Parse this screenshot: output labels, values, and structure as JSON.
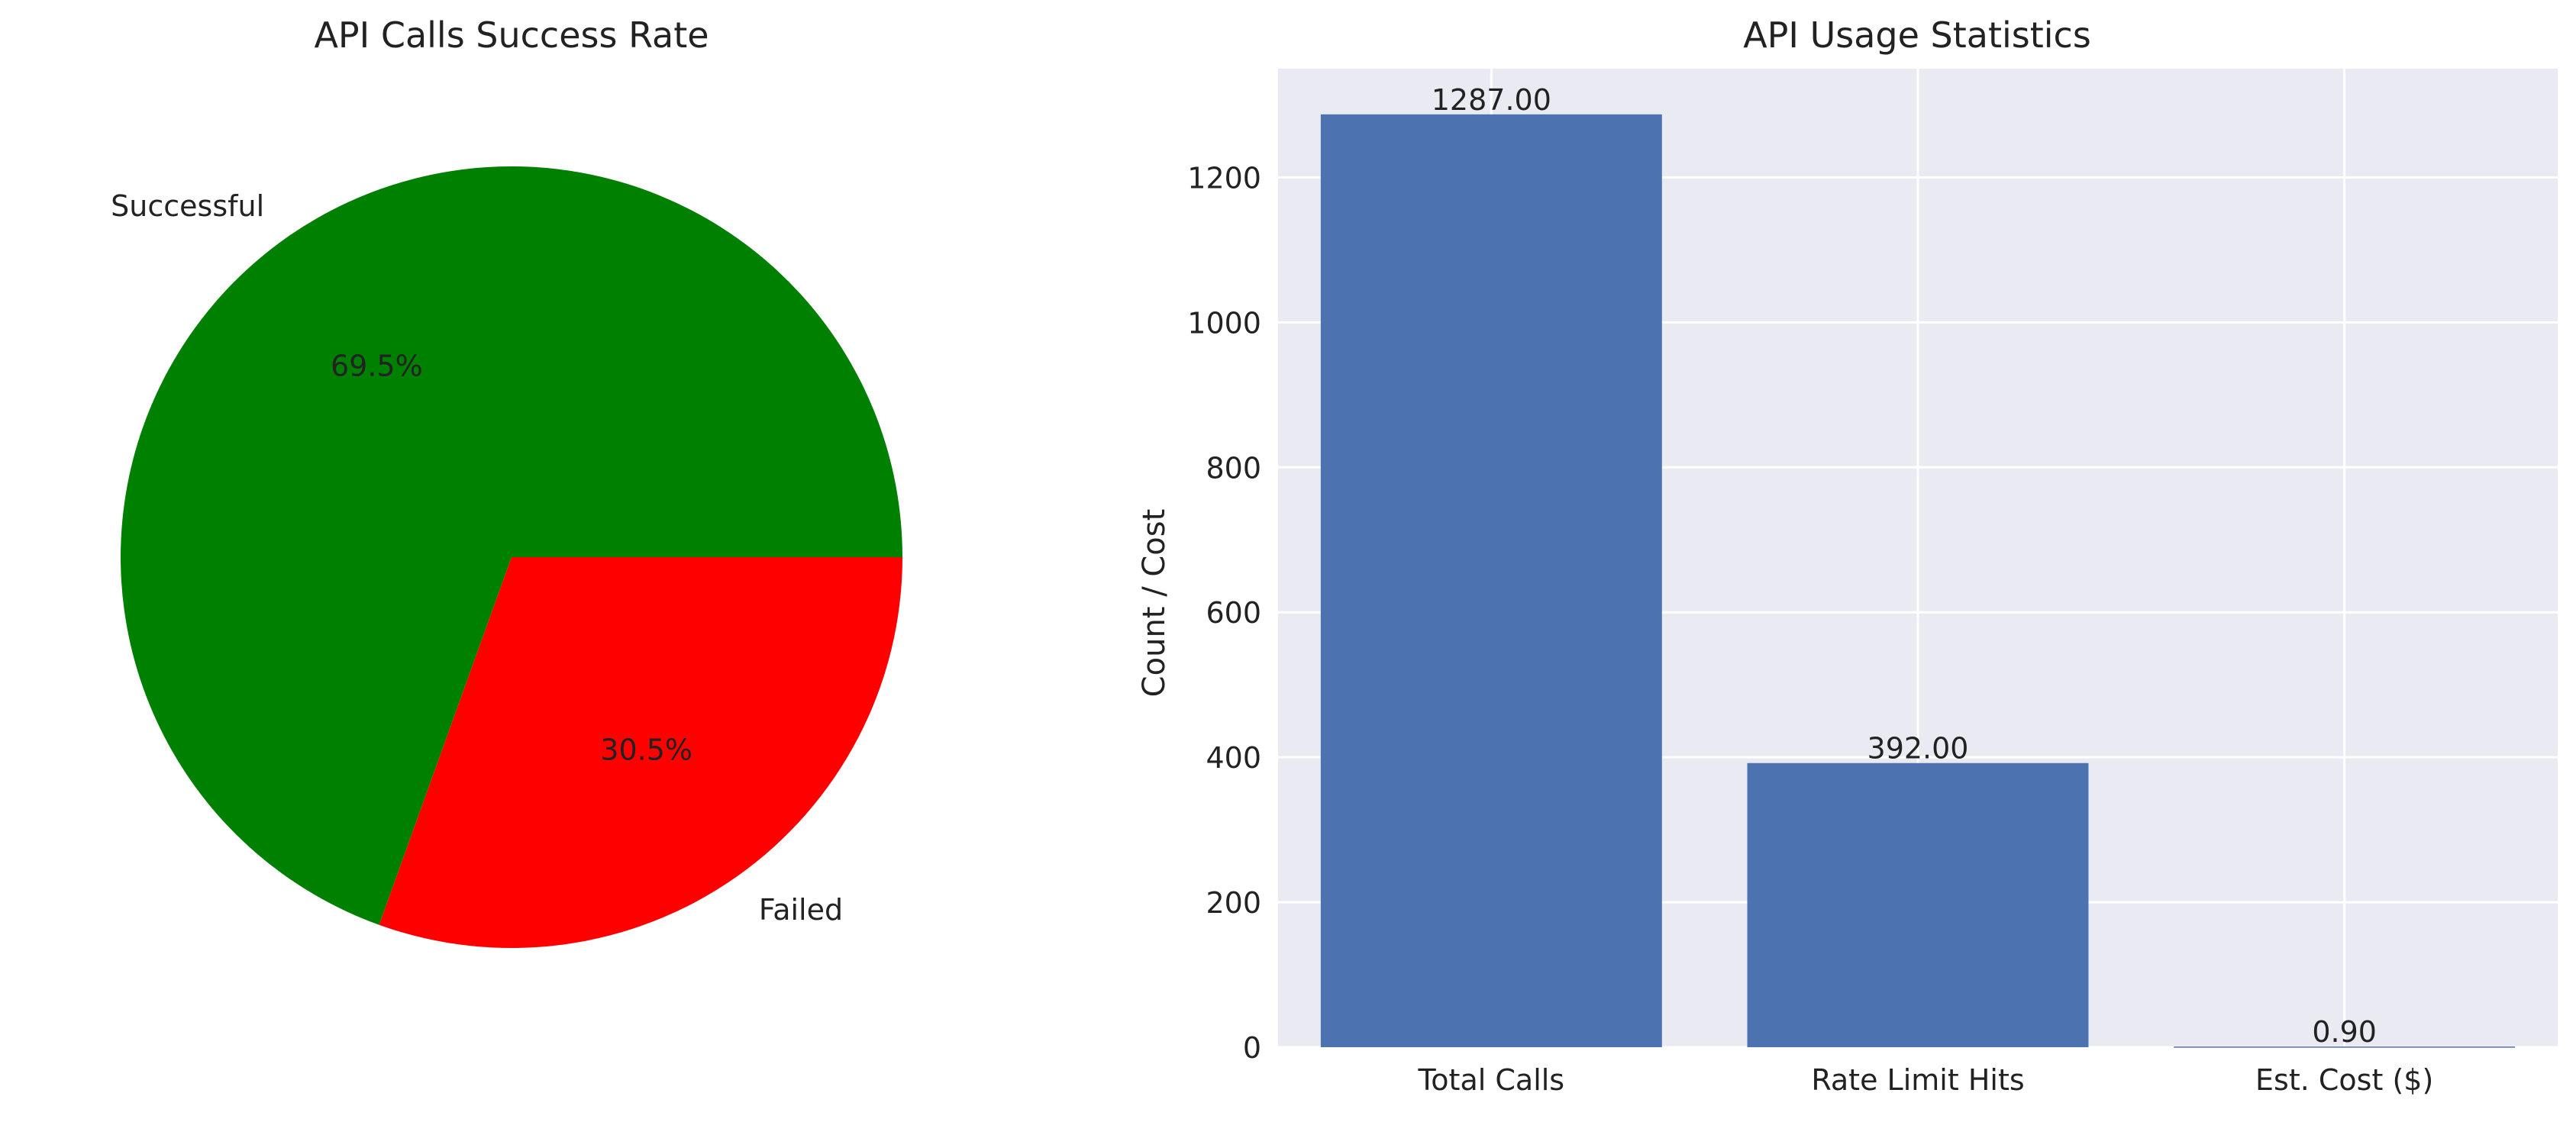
{
  "chart_data": [
    {
      "type": "pie",
      "title": "API Calls Success Rate",
      "labels": [
        "Successful",
        "Failed"
      ],
      "values": [
        69.5,
        30.5
      ],
      "display_labels": [
        "69.5%",
        "30.5%"
      ],
      "colors": [
        "#008000",
        "#ff0000"
      ],
      "start_angle_deg": 0,
      "direction": "counterclockwise"
    },
    {
      "type": "bar",
      "title": "API Usage Statistics",
      "categories": [
        "Total Calls",
        "Rate Limit Hits",
        "Est. Cost ($)"
      ],
      "values": [
        1287.0,
        392.0,
        0.9
      ],
      "value_labels": [
        "1287.00",
        "392.00",
        "0.90"
      ],
      "xlabel": "",
      "ylabel": "Count / Cost",
      "ylim": [
        0,
        1350
      ],
      "yticks": [
        0,
        200,
        400,
        600,
        800,
        1000,
        1200
      ],
      "grid": true,
      "background": "#eaeaf2",
      "bar_color": "#4c72b0"
    }
  ]
}
